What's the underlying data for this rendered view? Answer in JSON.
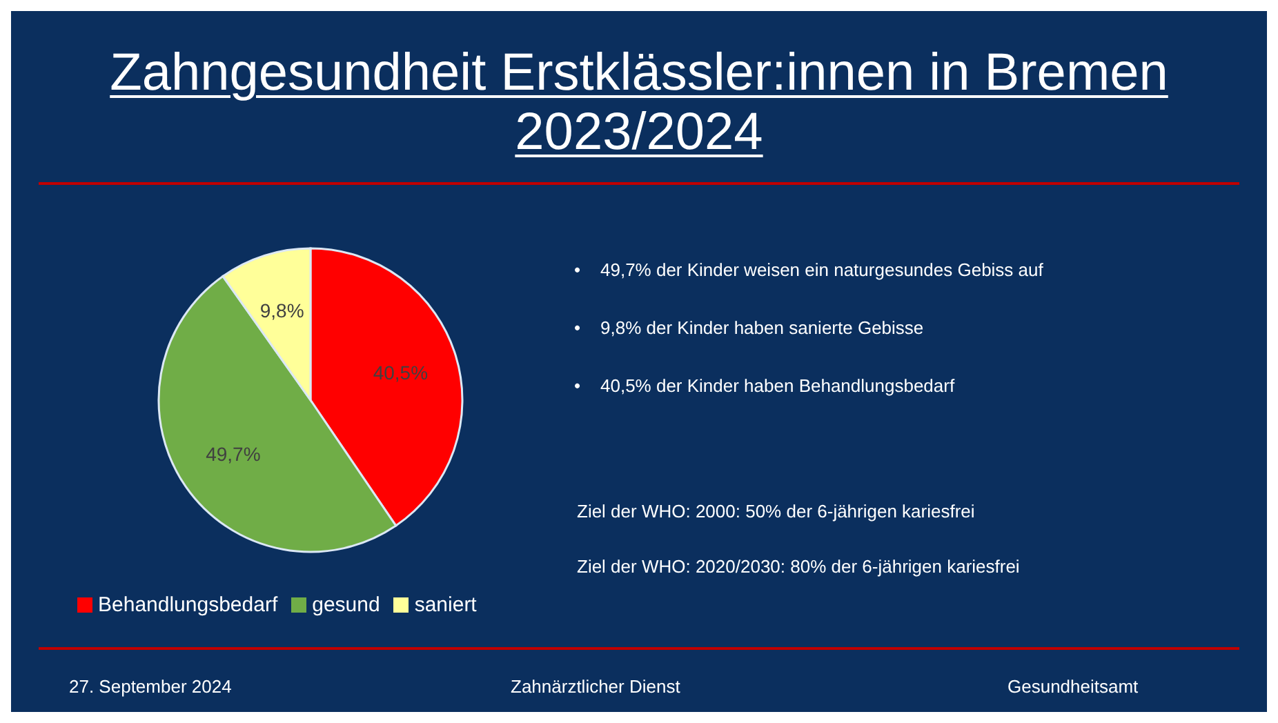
{
  "chart_data": {
    "type": "pie",
    "title": "Zahngesundheit Erstklässler:innen in Bremen 2023/2024",
    "categories": [
      "Behandlungsbedarf",
      "gesund",
      "saniert"
    ],
    "values": [
      40.5,
      49.7,
      9.8
    ],
    "colors": [
      "#ff0000",
      "#70ad47",
      "#ffff99"
    ],
    "value_labels": [
      "40,5%",
      "49,7%",
      "9,8%"
    ],
    "legend": "bottom",
    "annotations": [
      "•    49,7% der Kinder weisen ein naturgesundes Gebiss auf",
      "•    9,8% der Kinder haben sanierte Gebisse",
      "•    40,5% der Kinder haben Behandlungsbedarf",
      "Ziel der WHO: 2000: 50% der 6-jährigen kariesfrei",
      "Ziel der WHO: 2020/2030: 80% der 6-jährigen kariesfrei",
      "27. September 2024",
      "Zahnärztlicher Dienst",
      "Gesundheitsamt"
    ]
  }
}
